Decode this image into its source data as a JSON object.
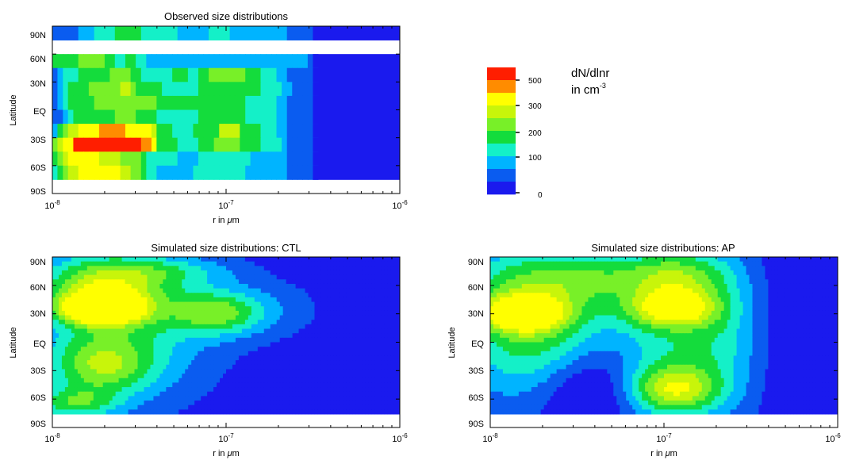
{
  "chart_data": {
    "type": "heatmap",
    "value_quantity": "dN/dlnr",
    "value_unit_line": "in cm",
    "value_unit_exponent": "-3",
    "color_levels": [
      "#1a1aee",
      "#0a5cf0",
      "#00b4ff",
      "#14f0c8",
      "#14dc3c",
      "#78f028",
      "#c8f50a",
      "#ffff00",
      "#ff8c00",
      "#ff1e00"
    ],
    "colorbar": {
      "title": "dN/dlnr",
      "unit_line": "in cm",
      "unit_exponent": "-3",
      "tick_labels": [
        "500",
        "300",
        "200",
        "100",
        "0"
      ],
      "tick_values": [
        500,
        300,
        200,
        100,
        0
      ]
    },
    "x_axis": {
      "label_prefix": "r in ",
      "label_symbol": "μ",
      "label_suffix": "m",
      "scale": "log",
      "range": [
        1e-08,
        1e-06
      ],
      "tick_bases": [
        "10",
        "10",
        "10"
      ],
      "tick_exps": [
        "-8",
        "-7",
        "-6"
      ]
    },
    "panels": [
      {
        "title": "Observed size distributions",
        "ylabel": "Latitude",
        "ytick_labels": [
          "90N",
          "60N",
          "30N",
          "EQ",
          "30S",
          "60S",
          "90S"
        ],
        "ylim": [
          -90,
          90
        ],
        "x_bin_edges": [
          1e-08,
          1.07e-08,
          1.15e-08,
          1.23e-08,
          1.32e-08,
          1.41e-08,
          1.51e-08,
          1.62e-08,
          1.74e-08,
          1.86e-08,
          2e-08,
          2.14e-08,
          2.29e-08,
          2.46e-08,
          2.63e-08,
          2.82e-08,
          3.02e-08,
          3.24e-08,
          3.47e-08,
          3.72e-08,
          3.98e-08,
          4.27e-08,
          4.57e-08,
          4.9e-08,
          5.25e-08,
          5.62e-08,
          6.03e-08,
          6.46e-08,
          6.92e-08,
          7.41e-08,
          7.94e-08,
          8.51e-08,
          9.12e-08,
          9.77e-08,
          1.05e-07,
          1.12e-07,
          1.2e-07,
          1.29e-07,
          1.38e-07,
          1.48e-07,
          1.58e-07,
          1.7e-07,
          1.82e-07,
          1.95e-07,
          2.09e-07,
          2.24e-07,
          2.4e-07,
          2.57e-07,
          2.75e-07,
          2.95e-07,
          3.16e-07
        ],
        "latitude_rows": [
          {
            "lat_range": [
              75,
              90
            ],
            "levels": [
              1,
              1,
              1,
              1,
              1,
              2,
              2,
              2,
              3,
              3,
              3,
              3,
              4,
              4,
              4,
              4,
              4,
              3,
              3,
              3,
              3,
              3,
              3,
              3,
              2,
              2,
              2,
              2,
              2,
              2,
              3,
              3,
              3,
              3,
              2,
              2,
              2,
              2,
              2,
              2,
              2,
              2,
              2,
              2,
              2,
              1,
              1,
              1,
              1,
              1,
              1
            ]
          },
          {
            "lat_range": [
              60,
              75
            ],
            "levels": null
          },
          {
            "lat_range": [
              45,
              60
            ],
            "levels": [
              4,
              4,
              4,
              4,
              4,
              5,
              5,
              5,
              5,
              5,
              4,
              4,
              3,
              3,
              4,
              4,
              3,
              3,
              2,
              2,
              2,
              2,
              2,
              2,
              2,
              2,
              2,
              2,
              2,
              2,
              2,
              2,
              2,
              2,
              2,
              2,
              2,
              2,
              2,
              2,
              2,
              2,
              2,
              2,
              2,
              2,
              2,
              2,
              2,
              1,
              1
            ]
          },
          {
            "lat_range": [
              30,
              45
            ],
            "levels": [
              1,
              2,
              3,
              3,
              3,
              4,
              4,
              4,
              4,
              4,
              4,
              5,
              5,
              5,
              5,
              4,
              4,
              3,
              3,
              3,
              3,
              3,
              3,
              4,
              4,
              4,
              3,
              3,
              4,
              4,
              5,
              5,
              5,
              5,
              5,
              5,
              5,
              4,
              4,
              4,
              3,
              3,
              3,
              2,
              2,
              1,
              1,
              1,
              1,
              1,
              1
            ]
          },
          {
            "lat_range": [
              15,
              30
            ],
            "levels": [
              1,
              2,
              3,
              4,
              4,
              4,
              4,
              5,
              5,
              5,
              5,
              5,
              5,
              6,
              6,
              5,
              4,
              4,
              4,
              4,
              4,
              3,
              3,
              3,
              3,
              3,
              3,
              3,
              4,
              4,
              4,
              4,
              4,
              4,
              4,
              4,
              4,
              4,
              4,
              4,
              3,
              3,
              3,
              3,
              2,
              2,
              1,
              1,
              1,
              1,
              1
            ]
          },
          {
            "lat_range": [
              0,
              15
            ],
            "levels": [
              1,
              2,
              3,
              4,
              4,
              4,
              4,
              4,
              5,
              5,
              5,
              5,
              5,
              5,
              5,
              5,
              5,
              5,
              5,
              5,
              4,
              4,
              4,
              4,
              4,
              4,
              4,
              4,
              4,
              4,
              4,
              4,
              4,
              4,
              4,
              4,
              4,
              3,
              3,
              3,
              3,
              3,
              3,
              2,
              2,
              1,
              1,
              1,
              1,
              1,
              1
            ]
          },
          {
            "lat_range": [
              -15,
              0
            ],
            "levels": [
              1,
              1,
              2,
              3,
              4,
              4,
              4,
              4,
              4,
              4,
              4,
              4,
              5,
              5,
              5,
              5,
              4,
              4,
              4,
              4,
              3,
              3,
              3,
              3,
              3,
              3,
              3,
              3,
              4,
              4,
              4,
              4,
              4,
              4,
              4,
              4,
              4,
              3,
              3,
              3,
              3,
              3,
              3,
              2,
              2,
              1,
              1,
              1,
              1,
              1,
              1
            ]
          },
          {
            "lat_range": [
              -30,
              -15
            ],
            "levels": [
              2,
              4,
              5,
              6,
              6,
              7,
              7,
              7,
              7,
              8,
              8,
              8,
              8,
              8,
              7,
              7,
              7,
              7,
              7,
              6,
              4,
              4,
              4,
              3,
              3,
              3,
              3,
              4,
              4,
              4,
              4,
              4,
              6,
              6,
              6,
              6,
              4,
              4,
              4,
              4,
              3,
              3,
              3,
              2,
              2,
              1,
              1,
              1,
              1,
              1,
              1
            ]
          },
          {
            "lat_range": [
              -45,
              -30
            ],
            "levels": [
              5,
              6,
              7,
              7,
              9,
              9,
              9,
              9,
              9,
              9,
              9,
              9,
              9,
              9,
              9,
              9,
              9,
              8,
              8,
              7,
              4,
              4,
              4,
              4,
              3,
              3,
              3,
              3,
              4,
              4,
              4,
              5,
              5,
              5,
              5,
              5,
              4,
              4,
              4,
              4,
              3,
              3,
              3,
              3,
              2,
              1,
              1,
              1,
              1,
              1,
              1
            ]
          },
          {
            "lat_range": [
              -60,
              -45
            ],
            "levels": [
              4,
              5,
              6,
              7,
              7,
              7,
              7,
              7,
              7,
              6,
              6,
              6,
              6,
              5,
              5,
              5,
              5,
              4,
              3,
              3,
              3,
              3,
              3,
              3,
              2,
              2,
              2,
              2,
              3,
              3,
              3,
              3,
              3,
              3,
              3,
              3,
              3,
              3,
              2,
              2,
              2,
              2,
              2,
              2,
              2,
              1,
              1,
              1,
              1,
              1,
              1
            ]
          },
          {
            "lat_range": [
              -75,
              -60
            ],
            "levels": [
              3,
              4,
              5,
              6,
              6,
              7,
              7,
              7,
              7,
              7,
              7,
              7,
              7,
              6,
              6,
              5,
              5,
              4,
              3,
              3,
              2,
              2,
              2,
              2,
              2,
              2,
              2,
              3,
              3,
              3,
              3,
              3,
              3,
              3,
              3,
              3,
              3,
              2,
              2,
              2,
              2,
              2,
              2,
              2,
              2,
              1,
              1,
              1,
              1,
              1,
              1
            ]
          },
          {
            "lat_range": [
              -90,
              -75
            ],
            "levels": null
          }
        ]
      },
      {
        "title": "Simulated size distributions: CTL",
        "ylabel": "Latitude",
        "ytick_labels": [
          "90N",
          "60N",
          "30N",
          "EQ",
          "30S",
          "60S",
          "90S"
        ],
        "ylim": [
          -90,
          90
        ],
        "model": "ctl"
      },
      {
        "title": "Simulated size distributions: AP",
        "ylabel": "Latitude",
        "ytick_labels": [
          "90N",
          "60N",
          "30N",
          "EQ",
          "30S",
          "60S",
          "90S"
        ],
        "ylim": [
          -90,
          90
        ],
        "model": "ap"
      }
    ]
  }
}
